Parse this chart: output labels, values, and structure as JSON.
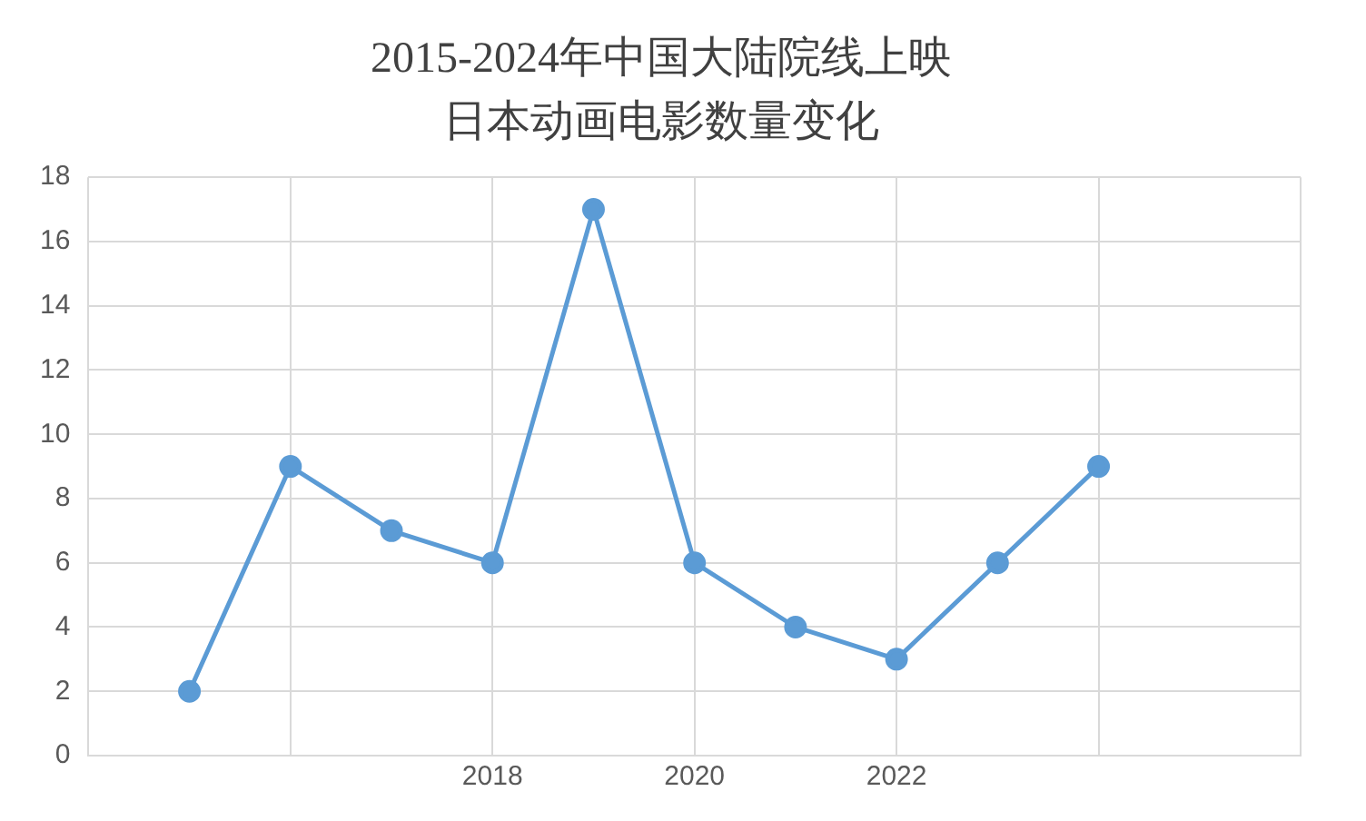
{
  "chart_data": {
    "type": "line",
    "title": "2015-2024年中国大陆院线上映日本动画电影数量变化",
    "x": [
      2015,
      2016,
      2017,
      2018,
      2019,
      2020,
      2021,
      2022,
      2023,
      2024
    ],
    "series": [
      {
        "color": "#5b9bd5",
        "values": [
          2,
          9,
          7,
          6,
          17,
          6,
          4,
          3,
          6,
          9
        ]
      }
    ],
    "xlim": [
      2014,
      2026
    ],
    "xticks": [
      {
        "value": 2014,
        "label": null
      },
      {
        "value": 2016,
        "label": null
      },
      2018,
      2020,
      2022,
      {
        "value": 2024,
        "label": null
      },
      {
        "value": 2026,
        "label": null
      }
    ],
    "ylim": [
      0,
      18
    ],
    "yticks": [
      0,
      2,
      4,
      6,
      8,
      10,
      12,
      14,
      16,
      18
    ],
    "grid": true,
    "marker": "circle",
    "line_style": "solid",
    "legend": false
  }
}
